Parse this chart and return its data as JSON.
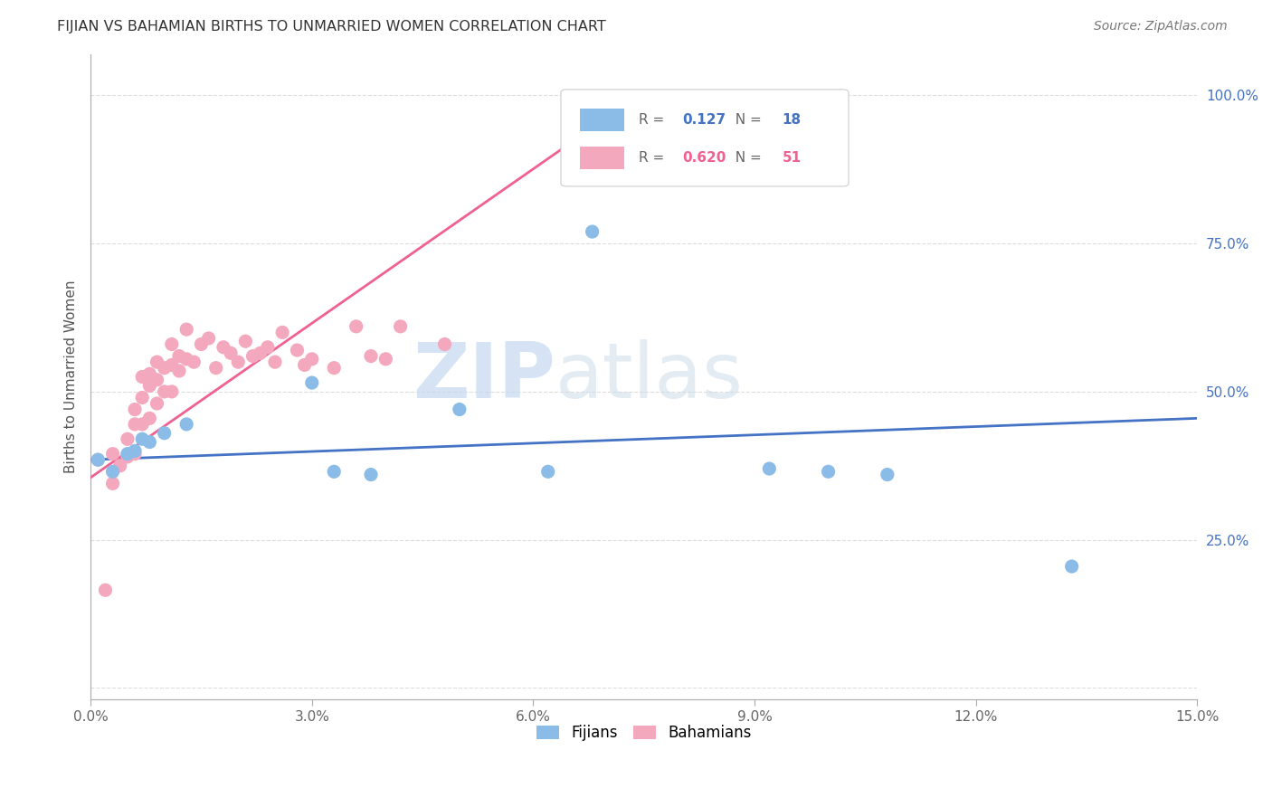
{
  "title": "FIJIAN VS BAHAMIAN BIRTHS TO UNMARRIED WOMEN CORRELATION CHART",
  "source": "Source: ZipAtlas.com",
  "ylabel_label": "Births to Unmarried Women",
  "xlim": [
    0.0,
    0.15
  ],
  "ylim": [
    -0.02,
    1.07
  ],
  "xtick_positions": [
    0.0,
    0.03,
    0.06,
    0.09,
    0.12,
    0.15
  ],
  "xticklabels": [
    "0.0%",
    "3.0%",
    "6.0%",
    "9.0%",
    "12.0%",
    "15.0%"
  ],
  "ytick_positions": [
    0.0,
    0.25,
    0.5,
    0.75,
    1.0
  ],
  "yticklabels": [
    "",
    "25.0%",
    "50.0%",
    "75.0%",
    "100.0%"
  ],
  "fijian_color": "#8BBCE8",
  "bahamian_color": "#F4A8BE",
  "fijian_line_color": "#4472C4",
  "bahamian_line_color": "#F06090",
  "background_color": "#FFFFFF",
  "grid_color": "#DDDDDD",
  "legend_R_fijian": "0.127",
  "legend_N_fijian": "18",
  "legend_R_bahamian": "0.620",
  "legend_N_bahamian": "51",
  "fijian_x": [
    0.001,
    0.003,
    0.005,
    0.006,
    0.007,
    0.008,
    0.01,
    0.013,
    0.03,
    0.033,
    0.038,
    0.05,
    0.062,
    0.068,
    0.092,
    0.1,
    0.108,
    0.133
  ],
  "fijian_y": [
    0.385,
    0.365,
    0.395,
    0.4,
    0.42,
    0.415,
    0.43,
    0.445,
    0.515,
    0.365,
    0.36,
    0.47,
    0.365,
    0.77,
    0.37,
    0.365,
    0.36,
    0.205
  ],
  "bahamian_x": [
    0.001,
    0.002,
    0.003,
    0.003,
    0.004,
    0.005,
    0.005,
    0.006,
    0.006,
    0.006,
    0.007,
    0.007,
    0.007,
    0.008,
    0.008,
    0.008,
    0.009,
    0.009,
    0.009,
    0.01,
    0.01,
    0.011,
    0.011,
    0.011,
    0.012,
    0.012,
    0.013,
    0.013,
    0.014,
    0.015,
    0.016,
    0.017,
    0.018,
    0.019,
    0.02,
    0.021,
    0.022,
    0.023,
    0.024,
    0.025,
    0.026,
    0.028,
    0.029,
    0.03,
    0.033,
    0.036,
    0.038,
    0.04,
    0.042,
    0.048,
    0.07
  ],
  "bahamian_y": [
    0.385,
    0.165,
    0.395,
    0.345,
    0.375,
    0.39,
    0.42,
    0.395,
    0.445,
    0.47,
    0.445,
    0.49,
    0.525,
    0.455,
    0.51,
    0.53,
    0.48,
    0.52,
    0.55,
    0.5,
    0.54,
    0.545,
    0.58,
    0.5,
    0.56,
    0.535,
    0.555,
    0.605,
    0.55,
    0.58,
    0.59,
    0.54,
    0.575,
    0.565,
    0.55,
    0.585,
    0.56,
    0.565,
    0.575,
    0.55,
    0.6,
    0.57,
    0.545,
    0.555,
    0.54,
    0.61,
    0.56,
    0.555,
    0.61,
    0.58,
    0.95
  ],
  "fijian_line_x": [
    0.0,
    0.15
  ],
  "fijian_line_y": [
    0.385,
    0.455
  ],
  "bahamian_line_x": [
    0.0,
    0.072
  ],
  "bahamian_line_y": [
    0.355,
    0.98
  ],
  "watermark_zip": "ZIP",
  "watermark_atlas": "atlas"
}
